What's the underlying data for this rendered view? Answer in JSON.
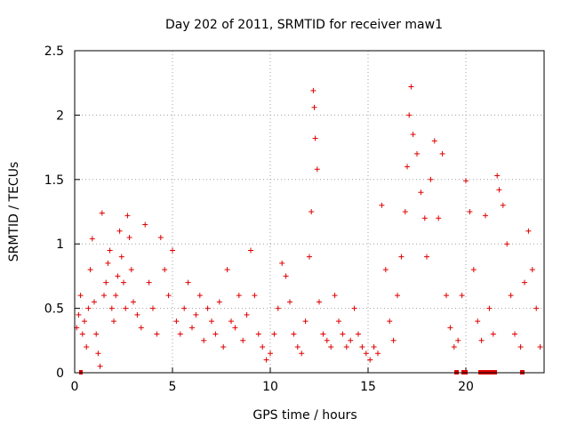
{
  "chart_data": {
    "type": "scatter",
    "title": "Day 202 of 2011, SRMTID for receiver maw1",
    "xlabel": "GPS time / hours",
    "ylabel": "SRMTID / TECUs",
    "xlim": [
      0,
      24
    ],
    "ylim": [
      0,
      2.5
    ],
    "xticks": [
      0,
      5,
      10,
      15,
      20
    ],
    "yticks": [
      0,
      0.5,
      1,
      1.5,
      2,
      2.5
    ],
    "xtick_labels": [
      "0",
      "5",
      "10",
      "15",
      "20"
    ],
    "ytick_labels": [
      "0",
      "0.5",
      "1",
      "1.5",
      "2",
      "2.5"
    ],
    "grid": true,
    "marker": "+",
    "color": "#e00000",
    "series": [
      {
        "name": "maw1",
        "points": [
          [
            0.1,
            0.35
          ],
          [
            0.2,
            0.45
          ],
          [
            0.3,
            0.6
          ],
          [
            0.4,
            0.3
          ],
          [
            0.5,
            0.4
          ],
          [
            0.6,
            0.2
          ],
          [
            0.7,
            0.5
          ],
          [
            0.8,
            0.8
          ],
          [
            0.9,
            1.04
          ],
          [
            1.0,
            0.55
          ],
          [
            1.1,
            0.3
          ],
          [
            1.2,
            0.15
          ],
          [
            1.3,
            0.05
          ],
          [
            1.4,
            1.24
          ],
          [
            1.5,
            0.6
          ],
          [
            1.6,
            0.7
          ],
          [
            1.7,
            0.85
          ],
          [
            1.8,
            0.95
          ],
          [
            1.9,
            0.5
          ],
          [
            2.0,
            0.4
          ],
          [
            2.1,
            0.6
          ],
          [
            2.2,
            0.75
          ],
          [
            2.3,
            1.1
          ],
          [
            2.4,
            0.9
          ],
          [
            2.5,
            0.7
          ],
          [
            2.6,
            0.5
          ],
          [
            2.7,
            1.22
          ],
          [
            2.8,
            1.05
          ],
          [
            2.9,
            0.8
          ],
          [
            3.0,
            0.55
          ],
          [
            3.2,
            0.45
          ],
          [
            3.4,
            0.35
          ],
          [
            3.6,
            1.15
          ],
          [
            3.8,
            0.7
          ],
          [
            4.0,
            0.5
          ],
          [
            4.2,
            0.3
          ],
          [
            4.4,
            1.05
          ],
          [
            4.6,
            0.8
          ],
          [
            4.8,
            0.6
          ],
          [
            5.0,
            0.95
          ],
          [
            5.2,
            0.4
          ],
          [
            5.4,
            0.3
          ],
          [
            5.6,
            0.5
          ],
          [
            5.8,
            0.7
          ],
          [
            6.0,
            0.35
          ],
          [
            6.2,
            0.45
          ],
          [
            6.4,
            0.6
          ],
          [
            6.6,
            0.25
          ],
          [
            6.8,
            0.5
          ],
          [
            7.0,
            0.4
          ],
          [
            7.2,
            0.3
          ],
          [
            7.4,
            0.55
          ],
          [
            7.6,
            0.2
          ],
          [
            7.8,
            0.8
          ],
          [
            8.0,
            0.4
          ],
          [
            8.2,
            0.35
          ],
          [
            8.4,
            0.6
          ],
          [
            8.6,
            0.25
          ],
          [
            8.8,
            0.45
          ],
          [
            9.0,
            0.95
          ],
          [
            9.2,
            0.6
          ],
          [
            9.4,
            0.3
          ],
          [
            9.6,
            0.2
          ],
          [
            9.8,
            0.1
          ],
          [
            10.0,
            0.15
          ],
          [
            10.2,
            0.3
          ],
          [
            10.4,
            0.5
          ],
          [
            10.6,
            0.85
          ],
          [
            10.8,
            0.75
          ],
          [
            11.0,
            0.55
          ],
          [
            11.2,
            0.3
          ],
          [
            11.4,
            0.2
          ],
          [
            11.6,
            0.15
          ],
          [
            11.8,
            0.4
          ],
          [
            12.0,
            0.9
          ],
          [
            12.1,
            1.25
          ],
          [
            12.2,
            2.19
          ],
          [
            12.25,
            2.06
          ],
          [
            12.3,
            1.82
          ],
          [
            12.4,
            1.58
          ],
          [
            12.5,
            0.55
          ],
          [
            12.7,
            0.3
          ],
          [
            12.9,
            0.25
          ],
          [
            13.1,
            0.2
          ],
          [
            13.3,
            0.6
          ],
          [
            13.5,
            0.4
          ],
          [
            13.7,
            0.3
          ],
          [
            13.9,
            0.2
          ],
          [
            14.1,
            0.25
          ],
          [
            14.3,
            0.5
          ],
          [
            14.5,
            0.3
          ],
          [
            14.7,
            0.2
          ],
          [
            14.9,
            0.15
          ],
          [
            15.1,
            0.1
          ],
          [
            15.3,
            0.2
          ],
          [
            15.5,
            0.15
          ],
          [
            15.7,
            1.3
          ],
          [
            15.9,
            0.8
          ],
          [
            16.1,
            0.4
          ],
          [
            16.3,
            0.25
          ],
          [
            16.5,
            0.6
          ],
          [
            16.7,
            0.9
          ],
          [
            16.9,
            1.25
          ],
          [
            17.0,
            1.6
          ],
          [
            17.1,
            2.0
          ],
          [
            17.2,
            2.22
          ],
          [
            17.3,
            1.85
          ],
          [
            17.5,
            1.7
          ],
          [
            17.7,
            1.4
          ],
          [
            17.9,
            1.2
          ],
          [
            18.0,
            0.9
          ],
          [
            18.2,
            1.5
          ],
          [
            18.4,
            1.8
          ],
          [
            18.6,
            1.2
          ],
          [
            18.8,
            1.7
          ],
          [
            19.0,
            0.6
          ],
          [
            19.2,
            0.35
          ],
          [
            19.4,
            0.2
          ],
          [
            19.6,
            0.25
          ],
          [
            19.8,
            0.6
          ],
          [
            20.0,
            1.49
          ],
          [
            20.2,
            1.25
          ],
          [
            20.4,
            0.8
          ],
          [
            20.6,
            0.4
          ],
          [
            20.8,
            0.25
          ],
          [
            21.0,
            1.22
          ],
          [
            21.2,
            0.5
          ],
          [
            21.4,
            0.3
          ],
          [
            21.6,
            1.53
          ],
          [
            21.7,
            1.42
          ],
          [
            21.9,
            1.3
          ],
          [
            22.1,
            1.0
          ],
          [
            22.3,
            0.6
          ],
          [
            22.5,
            0.3
          ],
          [
            22.8,
            0.2
          ],
          [
            23.0,
            0.7
          ],
          [
            23.2,
            1.1
          ],
          [
            23.4,
            0.8
          ],
          [
            23.6,
            0.5
          ],
          [
            23.8,
            0.2
          ]
        ]
      }
    ]
  }
}
